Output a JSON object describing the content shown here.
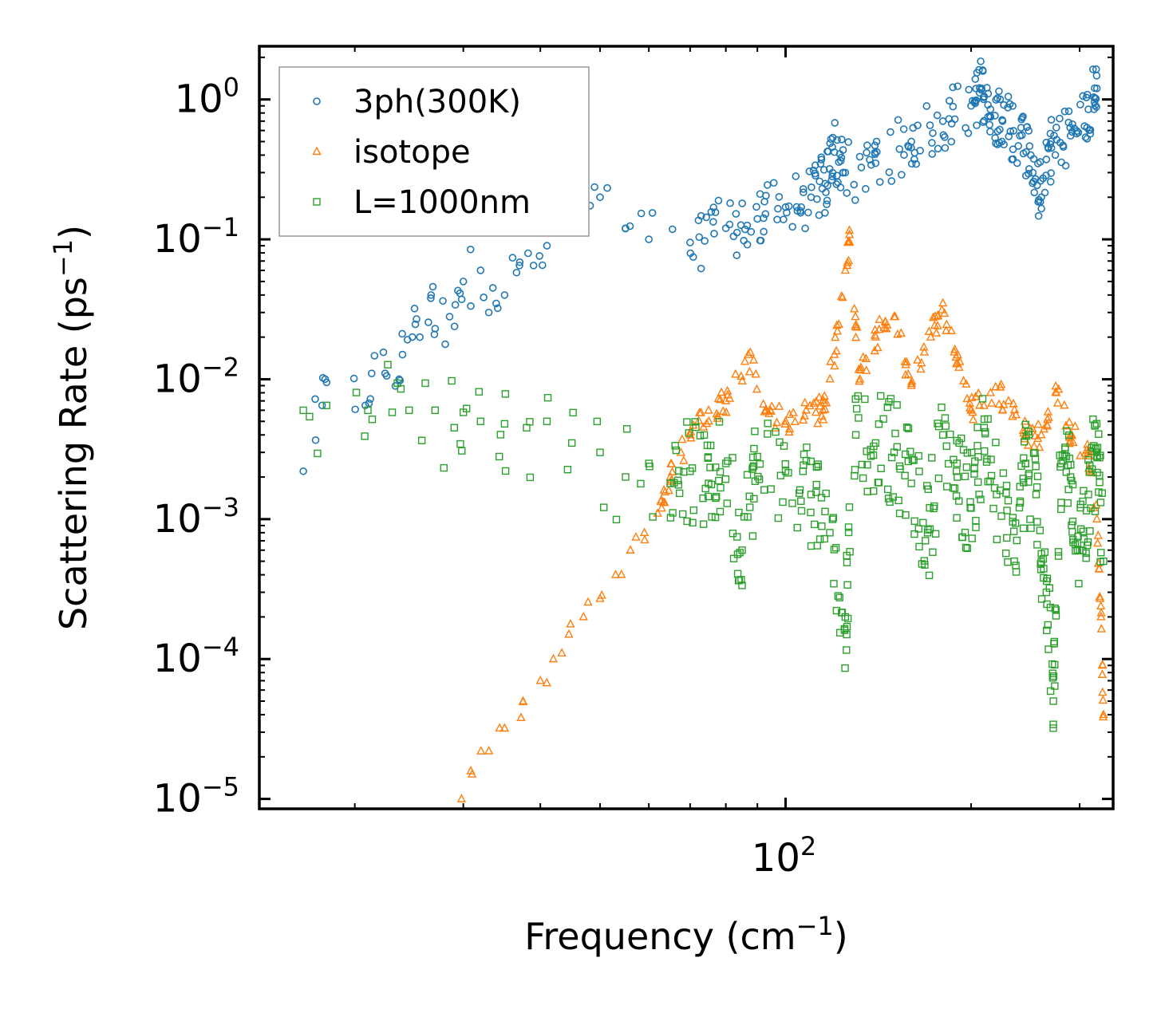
{
  "chart_data": {
    "type": "scatter",
    "title": "",
    "xlabel": "Frequency (cm",
    "xlabel_sup": "−1",
    "xlabel_close": ")",
    "ylabel": "Scattering Rate (ps",
    "ylabel_sup": "−1",
    "ylabel_close": ")",
    "xscale": "log",
    "yscale": "log",
    "xlim": [
      14,
      340
    ],
    "ylim": [
      8.5e-06,
      2.4
    ],
    "x_tick_labels": [
      {
        "value": 100,
        "base": "10",
        "exp": "2"
      }
    ],
    "y_tick_labels": [
      {
        "value": 1,
        "base": "10",
        "exp": "0"
      },
      {
        "value": 0.1,
        "base": "10",
        "exp": "−1"
      },
      {
        "value": 0.01,
        "base": "10",
        "exp": "−2"
      },
      {
        "value": 0.001,
        "base": "10",
        "exp": "−3"
      },
      {
        "value": 0.0001,
        "base": "10",
        "exp": "−4"
      },
      {
        "value": 1e-05,
        "base": "10",
        "exp": "−5"
      }
    ],
    "legend_position": "top-left",
    "grid": false,
    "series": [
      {
        "name": "3ph(300K)",
        "marker": "circle",
        "color": "#1f77b4",
        "anchors": [
          [
            16.5,
            0.0022
          ],
          [
            17.7,
            0.0065
          ],
          [
            18,
            0.0095
          ],
          [
            20.8,
            0.0065
          ],
          [
            21.3,
            0.011
          ],
          [
            22.4,
            0.011
          ],
          [
            23.6,
            0.01
          ],
          [
            23.9,
            0.015
          ],
          [
            25,
            0.032
          ],
          [
            25.5,
            0.02
          ],
          [
            26.6,
            0.04
          ],
          [
            27,
            0.023
          ],
          [
            28.5,
            0.028
          ],
          [
            29.4,
            0.043
          ],
          [
            30,
            0.05
          ],
          [
            32,
            0.06
          ],
          [
            33.5,
            0.045
          ],
          [
            35,
            0.04
          ],
          [
            37,
            0.065
          ],
          [
            39,
            0.065
          ],
          [
            41,
            0.09
          ],
          [
            41.5,
            0.3
          ],
          [
            45,
            0.18
          ],
          [
            50,
            0.2
          ],
          [
            55,
            0.12
          ],
          [
            60,
            0.1
          ],
          [
            70,
            0.095
          ],
          [
            80,
            0.12
          ],
          [
            90,
            0.14
          ],
          [
            100,
            0.17
          ],
          [
            110,
            0.2
          ],
          [
            116,
            0.25
          ],
          [
            120,
            0.42
          ],
          [
            125,
            0.3
          ],
          [
            140,
            0.35
          ],
          [
            160,
            0.5
          ],
          [
            180,
            0.7
          ],
          [
            200,
            0.9
          ],
          [
            208,
            1.2
          ],
          [
            215,
            0.85
          ],
          [
            225,
            0.7
          ],
          [
            240,
            0.55
          ],
          [
            250,
            0.4
          ],
          [
            260,
            0.2
          ],
          [
            270,
            0.45
          ],
          [
            290,
            0.55
          ],
          [
            310,
            0.85
          ],
          [
            320,
            1.2
          ]
        ]
      },
      {
        "name": "isotope",
        "marker": "triangle",
        "color": "#ff7f0e",
        "anchors": [
          [
            29.8,
            1e-05
          ],
          [
            31,
            1.5e-05
          ],
          [
            33,
            2.2e-05
          ],
          [
            35,
            3.2e-05
          ],
          [
            37.5,
            5e-05
          ],
          [
            40,
            7e-05
          ],
          [
            42,
            0.0001
          ],
          [
            44.5,
            0.00015
          ],
          [
            47,
            0.0002
          ],
          [
            50,
            0.00027
          ],
          [
            53,
            0.0004
          ],
          [
            56,
            0.0006
          ],
          [
            59,
            0.0008
          ],
          [
            62,
            0.0011
          ],
          [
            65,
            0.002
          ],
          [
            70,
            0.004
          ],
          [
            75,
            0.006
          ],
          [
            80,
            0.007
          ],
          [
            87,
            0.015
          ],
          [
            93,
            0.006
          ],
          [
            100,
            0.005
          ],
          [
            108,
            0.006
          ],
          [
            115,
            0.006
          ],
          [
            120,
            0.015
          ],
          [
            125,
            0.06
          ],
          [
            127,
            0.095
          ],
          [
            132,
            0.01
          ],
          [
            140,
            0.02
          ],
          [
            150,
            0.028
          ],
          [
            160,
            0.009
          ],
          [
            172,
            0.02
          ],
          [
            180,
            0.035
          ],
          [
            190,
            0.013
          ],
          [
            200,
            0.006
          ],
          [
            215,
            0.008
          ],
          [
            230,
            0.007
          ],
          [
            245,
            0.004
          ],
          [
            260,
            0.004
          ],
          [
            275,
            0.008
          ],
          [
            290,
            0.004
          ],
          [
            310,
            0.003
          ],
          [
            320,
            0.001
          ],
          [
            325,
            0.0002
          ],
          [
            328,
            4e-05
          ]
        ]
      },
      {
        "name": "L=1000nm",
        "marker": "square",
        "color": "#2ca02c",
        "anchors": [
          [
            16.5,
            0.006
          ],
          [
            18,
            0.0065
          ],
          [
            21,
            0.006
          ],
          [
            23,
            0.0058
          ],
          [
            24.5,
            0.006
          ],
          [
            27,
            0.006
          ],
          [
            29,
            0.0045
          ],
          [
            30,
            0.0058
          ],
          [
            32,
            0.005
          ],
          [
            35,
            0.0048
          ],
          [
            38,
            0.0045
          ],
          [
            41,
            0.005
          ],
          [
            45,
            0.0035
          ],
          [
            50,
            0.003
          ],
          [
            55,
            0.002
          ],
          [
            60,
            0.0025
          ],
          [
            65,
            0.0018
          ],
          [
            70,
            0.0022
          ],
          [
            75,
            0.0018
          ],
          [
            80,
            0.0025
          ],
          [
            85,
            0.0006
          ],
          [
            90,
            0.0028
          ],
          [
            100,
            0.0022
          ],
          [
            110,
            0.0015
          ],
          [
            118,
            0.0008
          ],
          [
            125,
            0.0002
          ],
          [
            130,
            0.004
          ],
          [
            140,
            0.0035
          ],
          [
            150,
            0.003
          ],
          [
            160,
            0.0018
          ],
          [
            170,
            0.0008
          ],
          [
            180,
            0.004
          ],
          [
            190,
            0.002
          ],
          [
            200,
            0.0012
          ],
          [
            210,
            0.0045
          ],
          [
            220,
            0.0015
          ],
          [
            235,
            0.0005
          ],
          [
            245,
            0.0025
          ],
          [
            255,
            0.0015
          ],
          [
            265,
            0.0003
          ],
          [
            272,
            5e-05
          ],
          [
            280,
            0.0025
          ],
          [
            290,
            0.002
          ],
          [
            300,
            0.0006
          ],
          [
            310,
            0.0015
          ],
          [
            320,
            0.003
          ],
          [
            328,
            0.0005
          ]
        ]
      }
    ]
  }
}
